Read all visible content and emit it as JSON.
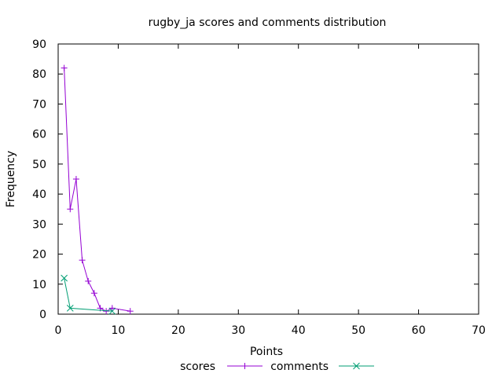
{
  "chart_data": {
    "type": "line",
    "title": "rugby_ja scores and comments distribution",
    "xlabel": "Points",
    "ylabel": "Frequency",
    "xlim": [
      0,
      70
    ],
    "ylim": [
      0,
      90
    ],
    "xticks": [
      0,
      10,
      20,
      30,
      40,
      50,
      60,
      70
    ],
    "yticks": [
      0,
      10,
      20,
      30,
      40,
      50,
      60,
      70,
      80,
      90
    ],
    "grid": false,
    "legend_position": "bottom",
    "series": [
      {
        "name": "scores",
        "color": "#9400d3",
        "marker": "plus",
        "x": [
          1,
          2,
          3,
          4,
          5,
          6,
          7,
          8,
          9,
          12
        ],
        "y": [
          82,
          35,
          45,
          18,
          11,
          7,
          2,
          1,
          2,
          1
        ]
      },
      {
        "name": "comments",
        "color": "#009e73",
        "marker": "cross",
        "x": [
          1,
          2,
          9
        ],
        "y": [
          12,
          2,
          1
        ]
      }
    ]
  }
}
